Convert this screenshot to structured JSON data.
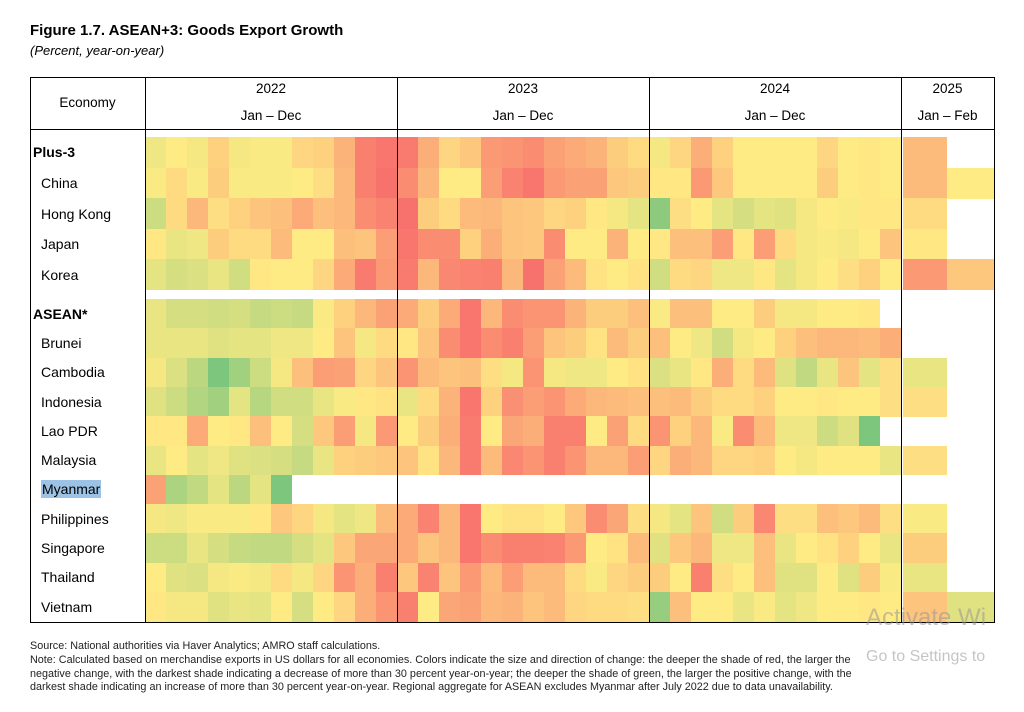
{
  "title": "Figure 1.7. ASEAN+3: Goods Export Growth",
  "subtitle": "(Percent, year-on-year)",
  "header": {
    "economy_label": "Economy",
    "years": [
      {
        "year": "2022",
        "period": "Jan – Dec"
      },
      {
        "year": "2023",
        "period": "Jan – Dec"
      },
      {
        "year": "2024",
        "period": "Jan – Dec"
      },
      {
        "year": "2025",
        "period": "Jan – Feb"
      }
    ]
  },
  "colors": {
    "negative": "#F8696B",
    "neutral": "#FFEB84",
    "positive": "#63BE7B",
    "selection": "#9cc3e6"
  },
  "chart_data": {
    "type": "heatmap",
    "title": "Figure 1.7. ASEAN+3: Goods Export Growth",
    "subtitle": "(Percent, year-on-year)",
    "color_scale": {
      "min": -30,
      "mid": 0,
      "max": 30,
      "min_color": "#F8696B",
      "mid_color": "#FFEB84",
      "max_color": "#63BE7B"
    },
    "columns": "Monthly, Jan 2022 – Feb 2025",
    "rows": [
      {
        "name": "Plus-3",
        "bold": true,
        "values": [
          3,
          0,
          2,
          -6,
          2,
          1,
          1,
          -5,
          -6,
          -13,
          -25,
          -27,
          -26,
          -14,
          -5,
          -8,
          -19,
          -20,
          -22,
          -17,
          -15,
          -13,
          -7,
          -4,
          2,
          -5,
          -14,
          -6,
          0,
          0,
          0,
          0,
          -5,
          0,
          -1,
          0,
          -11,
          null
        ]
      },
      {
        "name": "China",
        "values": [
          1,
          -4,
          1,
          -7,
          1,
          1,
          1,
          0,
          -3,
          -12,
          -25,
          -28,
          -22,
          -12,
          0,
          0,
          -18,
          -24,
          -27,
          -19,
          -17,
          -17,
          -8,
          -7,
          -1,
          -1,
          -19,
          -8,
          0,
          0,
          0,
          0,
          -7,
          0,
          -1,
          0,
          -11,
          0
        ]
      },
      {
        "name": "Hong Kong",
        "values": [
          10,
          -4,
          -12,
          -3,
          -6,
          -9,
          -10,
          -15,
          -10,
          -12,
          -22,
          -24,
          -28,
          -7,
          -4,
          -11,
          -12,
          -9,
          -8,
          -5,
          -6,
          -1,
          2,
          5,
          22,
          -3,
          0,
          5,
          8,
          5,
          6,
          2,
          0,
          1,
          -1,
          -1,
          -4,
          null
        ]
      },
      {
        "name": "Japan",
        "values": [
          -1,
          4,
          3,
          -7,
          -4,
          -4,
          -11,
          0,
          0,
          -10,
          -9,
          -18,
          -27,
          -22,
          -22,
          -6,
          -14,
          -9,
          -8,
          -22,
          0,
          0,
          -13,
          0,
          -1,
          -10,
          -10,
          -18,
          -1,
          -18,
          -4,
          2,
          1,
          2,
          0,
          -9,
          -1,
          null
        ]
      },
      {
        "name": "Korea",
        "values": [
          5,
          8,
          7,
          4,
          9,
          -1,
          0,
          0,
          -5,
          -15,
          -26,
          -19,
          -26,
          -12,
          -23,
          -24,
          -25,
          -12,
          -28,
          -17,
          -11,
          -2,
          0,
          -2,
          9,
          -4,
          -5,
          3,
          3,
          -1,
          5,
          2,
          0,
          -3,
          -6,
          0,
          -19,
          -8
        ]
      },
      {
        "name": "ASEAN*",
        "bold": true,
        "values": [
          4,
          8,
          8,
          9,
          8,
          11,
          10,
          11,
          1,
          -6,
          -12,
          -17,
          -15,
          -7,
          -15,
          -27,
          -12,
          -22,
          -20,
          -20,
          -13,
          -7,
          -7,
          -10,
          1,
          -10,
          -10,
          0,
          0,
          -7,
          2,
          2,
          0,
          0,
          -1,
          null,
          null,
          null
        ]
      },
      {
        "name": "Brunei",
        "values": [
          4,
          4,
          4,
          6,
          5,
          5,
          3,
          3,
          0,
          -9,
          2,
          -4,
          -1,
          -9,
          -22,
          -27,
          -22,
          -25,
          -18,
          -9,
          -7,
          -2,
          -11,
          -7,
          -10,
          0,
          3,
          9,
          2,
          0,
          -6,
          -10,
          -12,
          -12,
          -11,
          -14,
          null,
          null
        ]
      },
      {
        "name": "Cambodia",
        "values": [
          2,
          7,
          13,
          25,
          18,
          10,
          2,
          -10,
          -18,
          -17,
          -5,
          -9,
          -20,
          -11,
          -9,
          -10,
          -3,
          2,
          -20,
          2,
          3,
          3,
          0,
          -2,
          7,
          4,
          -1,
          -14,
          -4,
          -11,
          6,
          12,
          4,
          -9,
          5,
          -3,
          4,
          null
        ]
      },
      {
        "name": "Indonesia",
        "values": [
          6,
          10,
          15,
          18,
          5,
          14,
          9,
          9,
          4,
          1,
          -1,
          -2,
          4,
          -4,
          -13,
          -27,
          -6,
          -21,
          -18,
          -20,
          -15,
          -12,
          -11,
          -10,
          -10,
          -11,
          -7,
          -4,
          -4,
          -6,
          0,
          0,
          -1,
          0,
          0,
          -3,
          -3,
          null
        ]
      },
      {
        "name": "Lao PDR",
        "values": [
          -1,
          -1,
          -15,
          0,
          -1,
          -10,
          0,
          8,
          -8,
          -18,
          2,
          -19,
          0,
          -7,
          -14,
          -26,
          0,
          -16,
          -14,
          -25,
          -25,
          0,
          -17,
          -4,
          -20,
          -6,
          -12,
          1,
          -22,
          -11,
          3,
          3,
          10,
          6,
          25,
          null,
          null,
          null
        ]
      },
      {
        "name": "Malaysia",
        "values": [
          4,
          0,
          5,
          3,
          6,
          7,
          8,
          11,
          4,
          -6,
          -7,
          -8,
          -9,
          -2,
          -12,
          -26,
          -11,
          -23,
          -20,
          -25,
          -20,
          -12,
          -12,
          -18,
          -5,
          -14,
          -12,
          -5,
          -5,
          -6,
          0,
          2,
          0,
          0,
          0,
          4,
          -3,
          null
        ]
      },
      {
        "name": "Myanmar",
        "selected": true,
        "values": [
          -17,
          16,
          12,
          5,
          13,
          5,
          25,
          null,
          null,
          null,
          null,
          null,
          null,
          null,
          null,
          null,
          null,
          null,
          null,
          null,
          null,
          null,
          null,
          null,
          null,
          null,
          null,
          null,
          null,
          null,
          null,
          null,
          null,
          null,
          null,
          null,
          null,
          null
        ]
      },
      {
        "name": "Philippines",
        "values": [
          2,
          3,
          1,
          1,
          1,
          -1,
          -8,
          -5,
          2,
          5,
          3,
          -11,
          -15,
          -24,
          -12,
          -27,
          0,
          -2,
          -2,
          0,
          -8,
          -22,
          -16,
          -3,
          2,
          5,
          -9,
          9,
          -7,
          -23,
          -3,
          -3,
          -10,
          -8,
          -11,
          -3,
          1,
          null
        ]
      },
      {
        "name": "Singapore",
        "values": [
          10,
          10,
          4,
          8,
          11,
          12,
          12,
          8,
          5,
          -8,
          -16,
          -16,
          -15,
          -9,
          -12,
          -27,
          -22,
          -25,
          -25,
          -24,
          -19,
          0,
          -2,
          -11,
          6,
          -8,
          -12,
          3,
          3,
          -10,
          4,
          0,
          -2,
          -6,
          0,
          4,
          -7,
          null
        ]
      },
      {
        "name": "Thailand",
        "values": [
          0,
          6,
          7,
          2,
          1,
          2,
          -4,
          2,
          -5,
          -20,
          -14,
          -25,
          -8,
          -24,
          -9,
          -19,
          -11,
          -18,
          -11,
          -11,
          -4,
          1,
          -5,
          -7,
          -7,
          0,
          -25,
          -3,
          0,
          -10,
          6,
          6,
          0,
          6,
          -7,
          1,
          4,
          null
        ]
      },
      {
        "name": "Vietnam",
        "values": [
          -1,
          2,
          2,
          6,
          4,
          5,
          0,
          8,
          0,
          -5,
          -14,
          -20,
          -25,
          0,
          -16,
          -17,
          -12,
          -13,
          -9,
          -11,
          -5,
          -4,
          -4,
          -3,
          20,
          -10,
          0,
          0,
          4,
          1,
          5,
          3,
          0,
          0,
          -1,
          0,
          -9,
          6
        ]
      }
    ]
  },
  "footer": {
    "source": "Source: National authorities via Haver Analytics; AMRO staff calculations.",
    "note": "Note: Calculated based on merchandise exports in US dollars for all economies. Colors indicate the size and direction of change: the deeper the shade of red, the larger the negative change, with the darkest shade indicating a decrease of more than 30 percent year-on-year; the deeper the shade of green, the larger the positive change, with the darkest shade indicating an increase of more than 30 percent year-on-year. Regional aggregate for ASEAN excludes Myanmar after July 2022 due to data unavailability."
  },
  "watermark": {
    "line1": "Activate Wi",
    "line2": "Go to Settings to"
  }
}
